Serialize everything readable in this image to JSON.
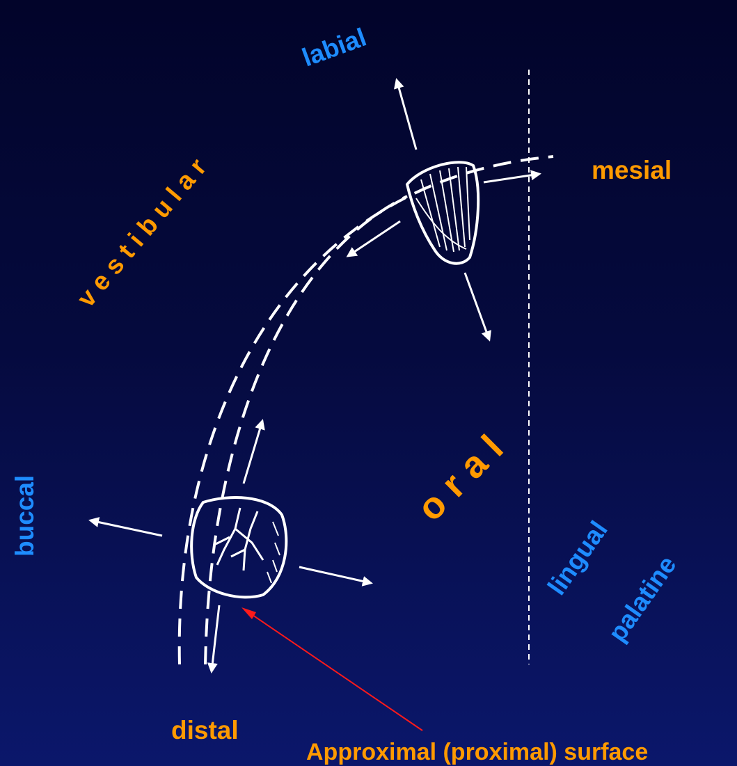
{
  "labels": {
    "labial": "labial",
    "mesial": "mesial",
    "vestibular": "vestibular",
    "buccal": "buccal",
    "oral": "oral",
    "lingual": "lingual",
    "palatine": "palatine",
    "distal": "distal",
    "approximal": "Approximal (proximal) surface"
  },
  "colors": {
    "background_top": "#02042a",
    "background_bottom": "#0b176b",
    "orange": "#ff9a00",
    "blue": "#1e8cff",
    "lines": "#ffffff",
    "pointer": "#ff1a1a"
  },
  "icons": {
    "incisor": "incisor-tooth-icon",
    "molar": "molar-tooth-icon"
  }
}
